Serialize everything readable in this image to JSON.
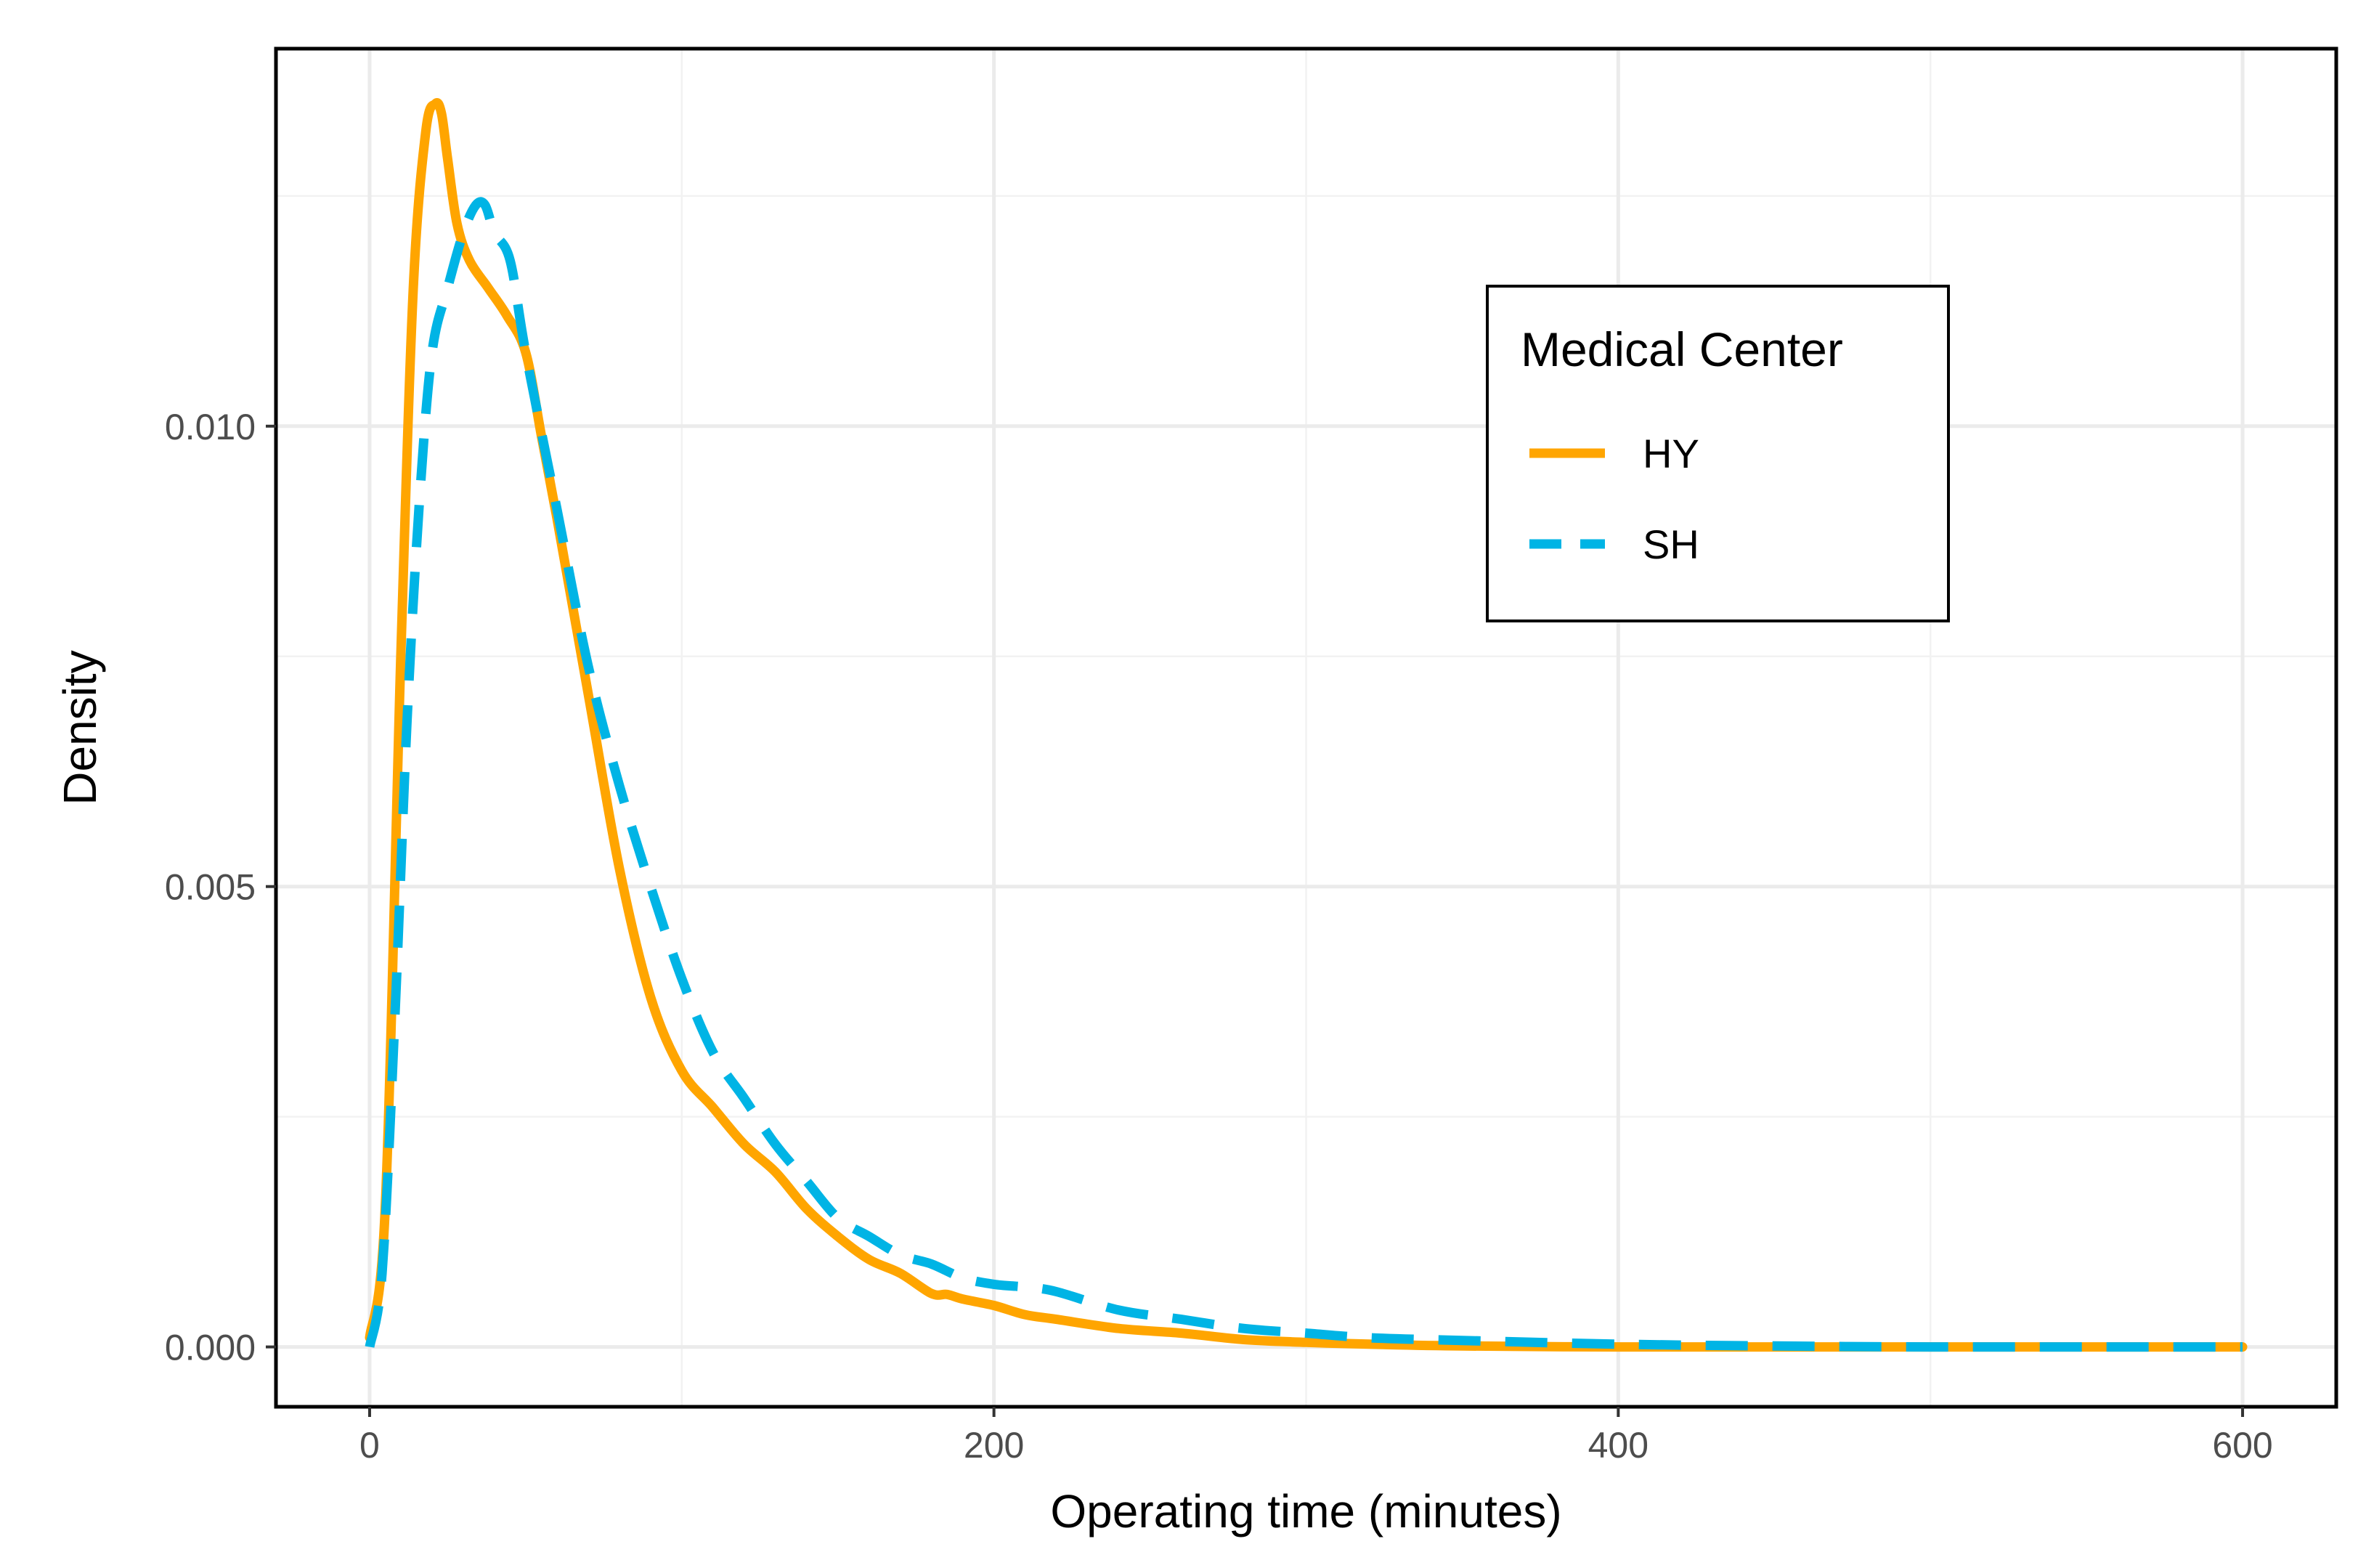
{
  "chart_data": {
    "type": "line",
    "title": "",
    "xlabel": "Operating time (minutes)",
    "ylabel": "Density",
    "xlim": [
      -30,
      630
    ],
    "ylim": [
      -0.00065,
      0.0141
    ],
    "xticks": [
      0,
      200,
      400,
      600
    ],
    "xtick_labels": [
      "0",
      "200",
      "400",
      "600"
    ],
    "yticks": [
      0.0,
      0.005,
      0.01
    ],
    "ytick_labels": [
      "0.000",
      "0.005",
      "0.010"
    ],
    "grid": true,
    "legend": {
      "title": "Medical Center",
      "placement": "top-right"
    },
    "series": [
      {
        "name": "HY",
        "color": "#FFA500",
        "dash": "solid",
        "x": [
          0,
          5,
          10,
          14,
          18,
          21,
          23,
          25,
          28,
          32,
          38,
          44,
          50,
          55,
          60,
          70,
          80,
          90,
          100,
          110,
          120,
          130,
          140,
          150,
          160,
          170,
          180,
          185,
          190,
          200,
          210,
          220,
          240,
          260,
          280,
          300,
          320,
          350,
          400,
          450,
          500,
          550,
          600
        ],
        "y": [
          0.0001,
          0.0015,
          0.0075,
          0.0115,
          0.0132,
          0.0135,
          0.0134,
          0.0129,
          0.0122,
          0.0118,
          0.0115,
          0.0112,
          0.0108,
          0.0099,
          0.009,
          0.0071,
          0.0052,
          0.0038,
          0.003,
          0.0026,
          0.0022,
          0.0019,
          0.0015,
          0.0012,
          0.00095,
          0.0008,
          0.00058,
          0.00057,
          0.00052,
          0.00045,
          0.00035,
          0.0003,
          0.0002,
          0.00015,
          8e-05,
          5e-05,
          3e-05,
          1e-05,
          0.0,
          0.0,
          0.0,
          0.0,
          0.0
        ]
      },
      {
        "name": "SH",
        "color": "#00B4E5",
        "dash": "dashed",
        "x": [
          0,
          4,
          8,
          12,
          16,
          20,
          25,
          30,
          34,
          37,
          40,
          45,
          50,
          60,
          70,
          80,
          90,
          100,
          110,
          120,
          130,
          140,
          150,
          160,
          170,
          180,
          190,
          200,
          210,
          220,
          240,
          260,
          280,
          300,
          320,
          350,
          400,
          450,
          500,
          550,
          600
        ],
        "y": [
          0.0,
          0.0008,
          0.0035,
          0.0068,
          0.0092,
          0.0108,
          0.0115,
          0.0121,
          0.0124,
          0.0124,
          0.0121,
          0.0118,
          0.0108,
          0.0091,
          0.0074,
          0.0061,
          0.005,
          0.004,
          0.0032,
          0.0027,
          0.0022,
          0.0018,
          0.0014,
          0.0012,
          0.001,
          0.0009,
          0.00075,
          0.00068,
          0.00065,
          0.0006,
          0.0004,
          0.0003,
          0.0002,
          0.00015,
          0.0001,
          7e-05,
          3e-05,
          1e-05,
          0.0,
          0.0,
          0.0
        ]
      }
    ]
  }
}
